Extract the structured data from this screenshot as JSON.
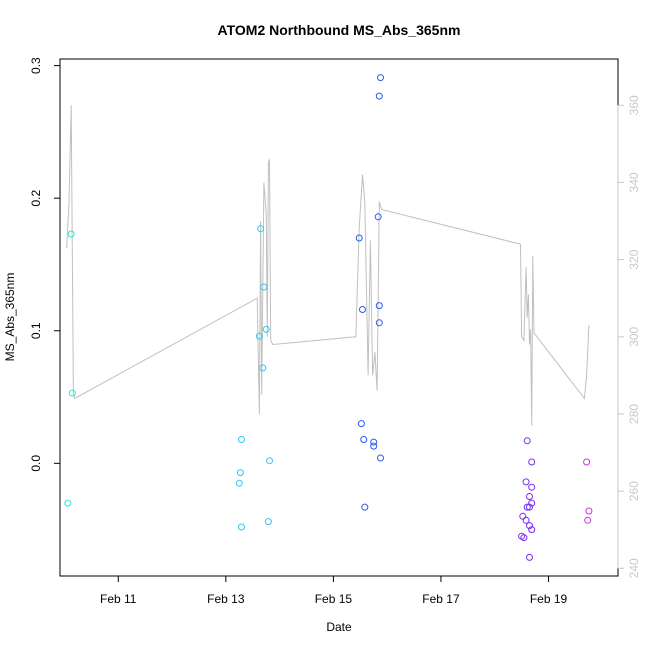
{
  "chart_data": {
    "type": "scatter",
    "title": "ATOM2 Northbound MS_Abs_365nm",
    "xlabel": "Date",
    "ylabel": "MS_Abs_365nm",
    "xlim": [
      "2017-02-09T22:00",
      "2017-02-20T07:00"
    ],
    "ylim": [
      -0.085,
      0.305
    ],
    "y2lim": [
      238,
      372
    ],
    "x_ticks": [
      {
        "date": "2017-02-11",
        "label": "Feb 11"
      },
      {
        "date": "2017-02-13",
        "label": "Feb 13"
      },
      {
        "date": "2017-02-15",
        "label": "Feb 15"
      },
      {
        "date": "2017-02-17",
        "label": "Feb 17"
      },
      {
        "date": "2017-02-19",
        "label": "Feb 19"
      }
    ],
    "y_ticks": [
      {
        "value": 0.0,
        "label": "0.0"
      },
      {
        "value": 0.1,
        "label": "0.1"
      },
      {
        "value": 0.2,
        "label": "0.2"
      },
      {
        "value": 0.3,
        "label": "0.3"
      }
    ],
    "y2_ticks": [
      {
        "value": 240,
        "label": "240"
      },
      {
        "value": 260,
        "label": "260"
      },
      {
        "value": 280,
        "label": "280"
      },
      {
        "value": 300,
        "label": "300"
      },
      {
        "value": 320,
        "label": "320"
      },
      {
        "value": 340,
        "label": "340"
      },
      {
        "value": 360,
        "label": "360"
      }
    ],
    "grid": false,
    "legend": "none",
    "points": [
      {
        "x": "2017-02-10T03:00",
        "y": 0.173,
        "color": "#33e6cc"
      },
      {
        "x": "2017-02-10T03:30",
        "y": 0.053,
        "color": "#33e6cc"
      },
      {
        "x": "2017-02-10T01:30",
        "y": -0.03,
        "color": "#33e6cc"
      },
      {
        "x": "2017-02-13T15:30",
        "y": 0.177,
        "color": "#33c7f0"
      },
      {
        "x": "2017-02-13T17:00",
        "y": 0.133,
        "color": "#33c7f0"
      },
      {
        "x": "2017-02-13T18:00",
        "y": 0.101,
        "color": "#33c7f0"
      },
      {
        "x": "2017-02-13T15:00",
        "y": 0.096,
        "color": "#33c7f0"
      },
      {
        "x": "2017-02-13T16:30",
        "y": 0.072,
        "color": "#33c7f0"
      },
      {
        "x": "2017-02-13T07:00",
        "y": 0.018,
        "color": "#33c7f0"
      },
      {
        "x": "2017-02-13T19:30",
        "y": 0.002,
        "color": "#33c7f0"
      },
      {
        "x": "2017-02-13T06:30",
        "y": -0.007,
        "color": "#33c7f0"
      },
      {
        "x": "2017-02-13T06:00",
        "y": -0.015,
        "color": "#33c7f0"
      },
      {
        "x": "2017-02-13T19:00",
        "y": -0.044,
        "color": "#33c7f0"
      },
      {
        "x": "2017-02-13T07:00",
        "y": -0.048,
        "color": "#33c7f0"
      },
      {
        "x": "2017-02-15T21:00",
        "y": 0.291,
        "color": "#2a5cf0"
      },
      {
        "x": "2017-02-15T20:30",
        "y": 0.277,
        "color": "#2a5cf0"
      },
      {
        "x": "2017-02-15T20:00",
        "y": 0.186,
        "color": "#2a5cf0"
      },
      {
        "x": "2017-02-15T11:30",
        "y": 0.17,
        "color": "#2a5cf0"
      },
      {
        "x": "2017-02-15T20:30",
        "y": 0.119,
        "color": "#2a5cf0"
      },
      {
        "x": "2017-02-15T13:00",
        "y": 0.116,
        "color": "#2a5cf0"
      },
      {
        "x": "2017-02-15T20:30",
        "y": 0.106,
        "color": "#2a5cf0"
      },
      {
        "x": "2017-02-15T12:30",
        "y": 0.03,
        "color": "#2a5cf0"
      },
      {
        "x": "2017-02-15T13:30",
        "y": 0.018,
        "color": "#2a5cf0"
      },
      {
        "x": "2017-02-15T18:00",
        "y": 0.016,
        "color": "#2a5cf0"
      },
      {
        "x": "2017-02-15T18:00",
        "y": 0.013,
        "color": "#2a5cf0"
      },
      {
        "x": "2017-02-15T21:00",
        "y": 0.004,
        "color": "#2a5cf0"
      },
      {
        "x": "2017-02-15T14:00",
        "y": -0.033,
        "color": "#2a5cf0"
      },
      {
        "x": "2017-02-18T14:30",
        "y": 0.017,
        "color": "#7a2ef0"
      },
      {
        "x": "2017-02-18T16:30",
        "y": 0.001,
        "color": "#7a2ef0"
      },
      {
        "x": "2017-02-18T14:00",
        "y": -0.014,
        "color": "#7a2ef0"
      },
      {
        "x": "2017-02-18T16:30",
        "y": -0.018,
        "color": "#7a2ef0"
      },
      {
        "x": "2017-02-18T15:30",
        "y": -0.025,
        "color": "#7a2ef0"
      },
      {
        "x": "2017-02-18T16:30",
        "y": -0.03,
        "color": "#7a2ef0"
      },
      {
        "x": "2017-02-18T14:30",
        "y": -0.033,
        "color": "#7a2ef0"
      },
      {
        "x": "2017-02-18T15:30",
        "y": -0.033,
        "color": "#7a2ef0"
      },
      {
        "x": "2017-02-18T12:30",
        "y": -0.04,
        "color": "#7a2ef0"
      },
      {
        "x": "2017-02-18T14:00",
        "y": -0.043,
        "color": "#7a2ef0"
      },
      {
        "x": "2017-02-18T15:30",
        "y": -0.047,
        "color": "#7a2ef0"
      },
      {
        "x": "2017-02-18T16:30",
        "y": -0.05,
        "color": "#7a2ef0"
      },
      {
        "x": "2017-02-18T12:00",
        "y": -0.055,
        "color": "#7a2ef0"
      },
      {
        "x": "2017-02-18T13:00",
        "y": -0.056,
        "color": "#7a2ef0"
      },
      {
        "x": "2017-02-18T15:30",
        "y": -0.071,
        "color": "#7a2ef0"
      },
      {
        "x": "2017-02-19T17:00",
        "y": 0.001,
        "color": "#d22ee8"
      },
      {
        "x": "2017-02-19T18:00",
        "y": -0.036,
        "color": "#d22ee8"
      },
      {
        "x": "2017-02-19T17:30",
        "y": -0.043,
        "color": "#d22ee8"
      }
    ],
    "line_series": {
      "axis": "right",
      "color": "#c0c0c0",
      "points": [
        [
          "2017-02-10T01:00",
          323
        ],
        [
          "2017-02-10T02:00",
          335
        ],
        [
          "2017-02-10T03:00",
          360
        ],
        [
          "2017-02-10T04:00",
          285
        ],
        [
          "2017-02-10T04:30",
          284
        ],
        [
          "2017-02-13T14:00",
          310
        ],
        [
          "2017-02-13T15:00",
          280
        ],
        [
          "2017-02-13T15:30",
          330
        ],
        [
          "2017-02-13T16:00",
          285
        ],
        [
          "2017-02-13T17:00",
          340
        ],
        [
          "2017-02-13T18:00",
          332
        ],
        [
          "2017-02-13T18:30",
          300
        ],
        [
          "2017-02-13T19:00",
          345
        ],
        [
          "2017-02-13T19:30",
          346
        ],
        [
          "2017-02-13T20:00",
          299
        ],
        [
          "2017-02-13T21:00",
          298
        ],
        [
          "2017-02-15T10:00",
          300
        ],
        [
          "2017-02-15T11:30",
          328
        ],
        [
          "2017-02-15T13:00",
          342
        ],
        [
          "2017-02-15T14:00",
          335
        ],
        [
          "2017-02-15T15:30",
          290
        ],
        [
          "2017-02-15T16:30",
          325
        ],
        [
          "2017-02-15T17:30",
          290
        ],
        [
          "2017-02-15T18:30",
          296
        ],
        [
          "2017-02-15T19:30",
          286
        ],
        [
          "2017-02-15T20:30",
          335
        ],
        [
          "2017-02-15T21:30",
          333
        ],
        [
          "2017-02-18T11:30",
          324
        ],
        [
          "2017-02-18T12:00",
          300
        ],
        [
          "2017-02-18T13:00",
          299
        ],
        [
          "2017-02-18T14:00",
          318
        ],
        [
          "2017-02-18T14:30",
          305
        ],
        [
          "2017-02-18T15:00",
          311
        ],
        [
          "2017-02-18T15:30",
          298
        ],
        [
          "2017-02-18T16:00",
          302
        ],
        [
          "2017-02-18T16:30",
          277
        ],
        [
          "2017-02-18T17:00",
          321
        ],
        [
          "2017-02-18T17:30",
          301
        ],
        [
          "2017-02-19T16:00",
          284
        ],
        [
          "2017-02-19T17:00",
          290
        ],
        [
          "2017-02-19T18:00",
          303
        ]
      ]
    }
  }
}
